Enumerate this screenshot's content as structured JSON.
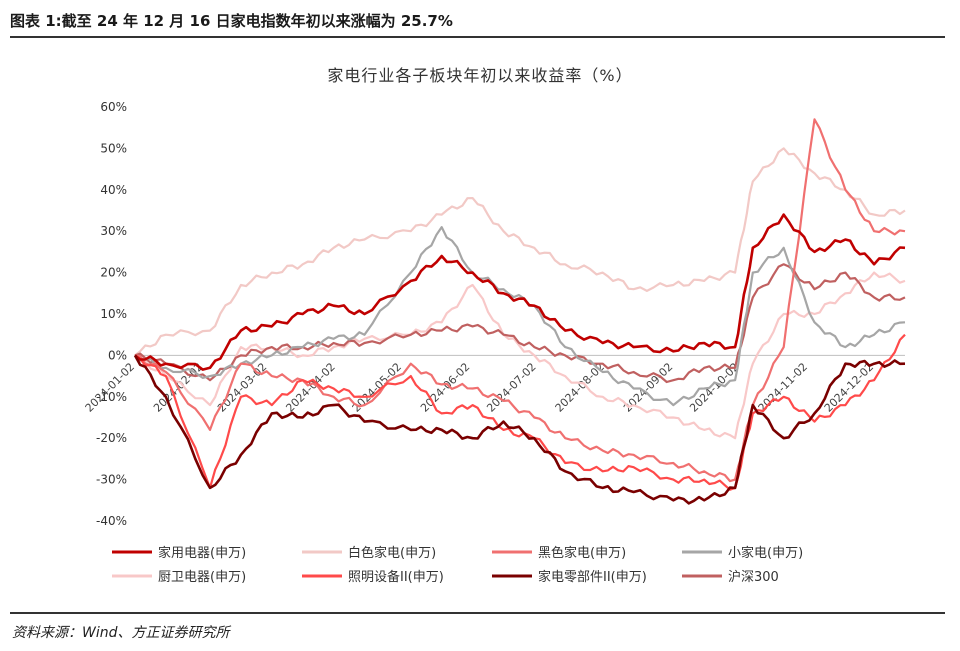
{
  "figure": {
    "label": "图表 1:截至 24 年 12 月 16 日家电指数年初以来涨幅为 25.7%",
    "source": "资料来源：Wind、方正证券研究所"
  },
  "chart_data": {
    "type": "line",
    "title": "家电行业各子板块年初以来收益率（%）",
    "xlabel": "",
    "ylabel": "",
    "ylim": [
      -40,
      60
    ],
    "y_ticks": [
      "60%",
      "50%",
      "40%",
      "30%",
      "20%",
      "10%",
      "0%",
      "-10%",
      "-20%",
      "-30%",
      "-40%"
    ],
    "x_ticks": [
      "2024-01-02",
      "2024-02-02",
      "2024-03-02",
      "2024-04-02",
      "2024-05-02",
      "2024-06-02",
      "2024-07-02",
      "2024-08-02",
      "2024-09-02",
      "2024-10-02",
      "2024-11-02",
      "2024-12-02"
    ],
    "grid": false,
    "legend_position": "bottom",
    "x": [
      "2024-01-02",
      "2024-01-16",
      "2024-02-05",
      "2024-02-19",
      "2024-03-04",
      "2024-03-18",
      "2024-04-01",
      "2024-04-15",
      "2024-05-06",
      "2024-05-20",
      "2024-06-03",
      "2024-06-17",
      "2024-07-01",
      "2024-07-15",
      "2024-08-01",
      "2024-08-15",
      "2024-09-02",
      "2024-09-16",
      "2024-09-30",
      "2024-10-08",
      "2024-10-22",
      "2024-11-05",
      "2024-11-19",
      "2024-12-02",
      "2024-12-16"
    ],
    "series": [
      {
        "name": "家用电器(申万)",
        "color": "#c00000",
        "width": 2.6,
        "values": [
          0,
          -2,
          -3,
          6,
          7,
          10,
          12,
          10,
          18,
          24,
          20,
          15,
          12,
          6,
          3,
          2,
          1,
          3,
          2,
          26,
          34,
          25,
          28,
          22,
          26
        ]
      },
      {
        "name": "白色家电(申万)",
        "color": "#f2c9c6",
        "width": 2.2,
        "values": [
          0,
          5,
          6,
          17,
          20,
          22,
          26,
          28,
          30,
          34,
          38,
          30,
          26,
          22,
          20,
          16,
          17,
          18,
          20,
          42,
          50,
          44,
          40,
          34,
          35
        ]
      },
      {
        "name": "黑色家电(申万)",
        "color": "#f07070",
        "width": 2.2,
        "values": [
          0,
          -4,
          -18,
          -2,
          -5,
          -6,
          -10,
          -12,
          -2,
          -7,
          -8,
          -11,
          -15,
          -20,
          -23,
          -24,
          -26,
          -28,
          -30,
          -12,
          2,
          57,
          40,
          30,
          30
        ]
      },
      {
        "name": "小家电(申万)",
        "color": "#a6a6a6",
        "width": 2.2,
        "values": [
          0,
          -3,
          -5,
          -2,
          0,
          2,
          4,
          5,
          20,
          31,
          20,
          16,
          12,
          2,
          -4,
          -8,
          -12,
          -8,
          -6,
          20,
          26,
          8,
          2,
          5,
          8
        ]
      },
      {
        "name": "厨卫电器(申万)",
        "color": "#f8c8c8",
        "width": 2.2,
        "values": [
          0,
          -5,
          -12,
          2,
          2,
          0,
          2,
          4,
          5,
          8,
          17,
          5,
          0,
          -5,
          -10,
          -12,
          -15,
          -18,
          -20,
          -2,
          10,
          10,
          15,
          20,
          18
        ]
      },
      {
        "name": "照明设备II(申万)",
        "color": "#ff4a4a",
        "width": 2.2,
        "values": [
          0,
          -5,
          -32,
          -10,
          -12,
          -6,
          -8,
          -10,
          -5,
          -14,
          -12,
          -18,
          -20,
          -26,
          -28,
          -27,
          -30,
          -30,
          -32,
          -14,
          -10,
          -16,
          -12,
          -6,
          5
        ]
      },
      {
        "name": "家电零部件II(申万)",
        "color": "#7a0000",
        "width": 2.6,
        "values": [
          0,
          -10,
          -32,
          -24,
          -14,
          -15,
          -12,
          -16,
          -18,
          -18,
          -20,
          -16,
          -20,
          -28,
          -32,
          -33,
          -35,
          -35,
          -32,
          -12,
          -20,
          -14,
          -2,
          -2,
          -2
        ]
      },
      {
        "name": "沪深300",
        "color": "#c06060",
        "width": 2.2,
        "values": [
          0,
          -2,
          -6,
          0,
          2,
          2,
          3,
          3,
          5,
          6,
          7,
          5,
          2,
          0,
          -2,
          -4,
          -6,
          -3,
          -3,
          14,
          22,
          16,
          20,
          14,
          14
        ]
      }
    ]
  }
}
